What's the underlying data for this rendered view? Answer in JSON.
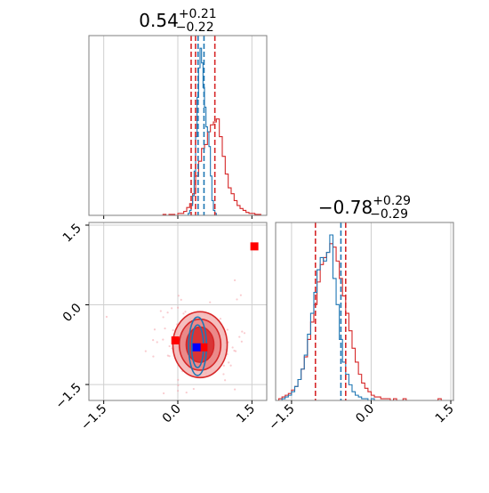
{
  "chart_data": [
    {
      "panel": "top-left",
      "type": "histogram",
      "title": "0.54",
      "title_sup": "+0.21",
      "title_sub": "−0.22",
      "xlim": [
        -1.8,
        1.8
      ],
      "grid": true,
      "series": [
        {
          "color": "#d62728",
          "bin_start": -1.8,
          "bin_width": 0.06,
          "counts": [
            0,
            0,
            0,
            0,
            0,
            0,
            0,
            0,
            0,
            0,
            0,
            0,
            0,
            0,
            0,
            0,
            0,
            0,
            0,
            0,
            0,
            0,
            0,
            0,
            0,
            1,
            0,
            1,
            1,
            0,
            2,
            2,
            4,
            8,
            12,
            22,
            40,
            55,
            68,
            72,
            85,
            92,
            95,
            98,
            80,
            60,
            42,
            28,
            22,
            15,
            10,
            7,
            5,
            3,
            2,
            2,
            1,
            1,
            0,
            0
          ]
        },
        {
          "color": "#1f77b4",
          "bin_start": -1.8,
          "bin_width": 0.03,
          "counts": [
            0,
            0,
            0,
            0,
            0,
            0,
            0,
            0,
            0,
            0,
            0,
            0,
            0,
            0,
            0,
            0,
            0,
            0,
            0,
            0,
            0,
            0,
            0,
            0,
            0,
            0,
            0,
            0,
            0,
            0,
            0,
            0,
            0,
            0,
            0,
            0,
            0,
            0,
            0,
            0,
            0,
            0,
            0,
            0,
            0,
            0,
            0,
            0,
            0,
            0,
            0,
            0,
            0,
            0,
            0,
            0,
            0,
            0,
            0,
            0,
            0,
            0,
            0,
            0,
            0,
            0,
            0,
            2,
            5,
            10,
            20,
            45,
            80,
            120,
            150,
            170,
            155,
            130,
            110,
            90,
            85,
            70,
            40,
            15,
            5,
            2,
            0,
            0,
            0,
            0,
            0,
            0,
            0,
            0,
            0,
            0,
            0,
            0,
            0,
            0,
            0,
            0,
            0,
            0,
            0,
            0,
            0,
            0,
            0,
            0,
            0,
            0,
            0,
            0,
            0,
            0,
            0,
            0,
            0,
            0
          ]
        }
      ],
      "quantiles": [
        {
          "color": "#d62728",
          "x": 0.27
        },
        {
          "color": "#d62728",
          "x": 0.36
        },
        {
          "color": "#d62728",
          "x": 0.75
        },
        {
          "color": "#1f77b4",
          "x": 0.41
        },
        {
          "color": "#1f77b4",
          "x": 0.53
        }
      ]
    },
    {
      "panel": "bottom-right",
      "type": "histogram",
      "title": "−0.78",
      "title_sup": "+0.29",
      "title_sub": "−0.29",
      "xlim": [
        -1.8,
        1.55
      ],
      "xticks": [
        "−1.5",
        "0.0",
        "1.5"
      ],
      "xtick_values": [
        -1.5,
        0.0,
        1.5
      ],
      "grid": true,
      "series": [
        {
          "color": "#d62728",
          "bin_start": -1.8,
          "bin_width": 0.06,
          "counts": [
            0,
            1,
            2,
            3,
            4,
            6,
            8,
            12,
            18,
            25,
            35,
            45,
            55,
            68,
            78,
            82,
            85,
            90,
            88,
            80,
            70,
            60,
            50,
            40,
            30,
            22,
            15,
            10,
            7,
            5,
            3,
            2,
            2,
            1,
            1,
            1,
            0,
            1,
            0,
            0,
            1,
            0,
            0,
            0,
            0,
            0,
            0,
            0,
            0,
            0,
            0,
            1,
            0,
            0,
            0,
            0
          ]
        },
        {
          "color": "#1f77b4",
          "bin_start": -1.8,
          "bin_width": 0.06,
          "counts": [
            0,
            0,
            1,
            2,
            3,
            5,
            8,
            12,
            18,
            26,
            38,
            50,
            62,
            75,
            82,
            80,
            85,
            95,
            70,
            55,
            35,
            22,
            15,
            9,
            5,
            3,
            2,
            1,
            1,
            0,
            1,
            0,
            0,
            0,
            0,
            0,
            0,
            0,
            0,
            0,
            0,
            0,
            0,
            0,
            0,
            0,
            0,
            0,
            0,
            0,
            0,
            0,
            0,
            0,
            0,
            0
          ]
        }
      ],
      "quantiles": [
        {
          "color": "#d62728",
          "x": -1.05
        },
        {
          "color": "#d62728",
          "x": -0.48
        },
        {
          "color": "#1f77b4",
          "x": -0.57
        }
      ]
    },
    {
      "panel": "bottom-left",
      "type": "scatter",
      "xlim": [
        -1.8,
        1.8
      ],
      "ylim": [
        -1.8,
        1.55
      ],
      "xticks": [
        "−1.5",
        "0.0",
        "1.5"
      ],
      "xtick_values": [
        -1.5,
        0.0,
        1.5
      ],
      "yticks": [
        "−1.5",
        "0.0",
        "1.5"
      ],
      "ytick_values": [
        -1.5,
        0.0,
        1.5
      ],
      "grid": true,
      "contours": [
        {
          "color": "#d62728",
          "fill": "#f3b3b3",
          "cx": 0.45,
          "cy": -0.75,
          "rx": 0.55,
          "ry": 0.62
        },
        {
          "color": "#d62728",
          "fill": "#e98080",
          "cx": 0.45,
          "cy": -0.75,
          "rx": 0.42,
          "ry": 0.48
        },
        {
          "color": "#d62728",
          "fill": "#d62728",
          "cx": 0.45,
          "cy": -0.75,
          "rx": 0.28,
          "ry": 0.33
        },
        {
          "color": "#1f77b4",
          "fill": "none",
          "cx": 0.4,
          "cy": -0.78,
          "rx": 0.18,
          "ry": 0.55
        },
        {
          "color": "#1f77b4",
          "fill": "none",
          "cx": 0.4,
          "cy": -0.78,
          "rx": 0.12,
          "ry": 0.4
        }
      ],
      "markers": [
        {
          "color": "#ff0000",
          "x": 1.55,
          "y": 1.1
        },
        {
          "color": "#ff0000",
          "x": -0.05,
          "y": -0.67
        },
        {
          "color": "#ff0000",
          "x": 0.52,
          "y": -0.8
        },
        {
          "color": "#0000ff",
          "x": 0.38,
          "y": -0.8
        }
      ]
    }
  ]
}
